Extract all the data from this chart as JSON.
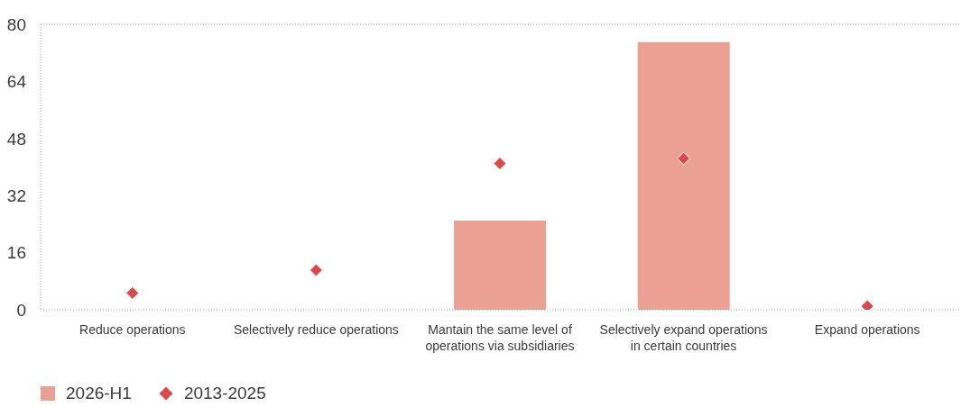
{
  "chart_data": {
    "type": "bar",
    "categories": [
      "Reduce operations",
      "Selectively reduce operations",
      "Mantain the same level of\noperations via subsidiaries",
      "Selectively expand operations\nin certain countries",
      "Expand operations"
    ],
    "series": [
      {
        "name": "2026-H1",
        "color": "#eaa093",
        "values": [
          0,
          0,
          25,
          75,
          0
        ]
      },
      {
        "name": "2013-2025",
        "type": "scatter",
        "color": "#d94a4a",
        "marker": "diamond",
        "values": [
          4.7,
          11.1,
          41,
          42.4,
          1
        ]
      }
    ],
    "ylim": [
      0,
      80
    ],
    "yticks": [
      0,
      16,
      32,
      48,
      64,
      80
    ],
    "legend": "bottom left"
  }
}
